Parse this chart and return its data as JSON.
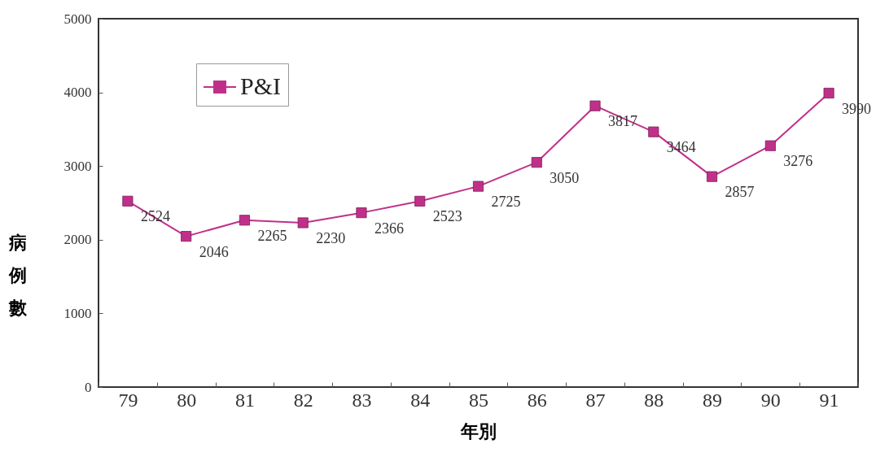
{
  "chart_data": {
    "type": "line",
    "xlabel": "年別",
    "ylabel": "病例數",
    "categories": [
      "79",
      "80",
      "81",
      "82",
      "83",
      "84",
      "85",
      "86",
      "87",
      "88",
      "89",
      "90",
      "91"
    ],
    "series": [
      {
        "name": "P&I",
        "color": "#c0308a",
        "values": [
          2524,
          2046,
          2265,
          2230,
          2366,
          2523,
          2725,
          3050,
          3817,
          3464,
          2857,
          3276,
          3990
        ]
      }
    ],
    "ylim": [
      0,
      5000
    ],
    "yticks": [
      0,
      1000,
      2000,
      3000,
      4000,
      5000
    ],
    "grid": false,
    "legend": "top left",
    "marker": "square",
    "line_style": "solid",
    "data_labels": true
  }
}
